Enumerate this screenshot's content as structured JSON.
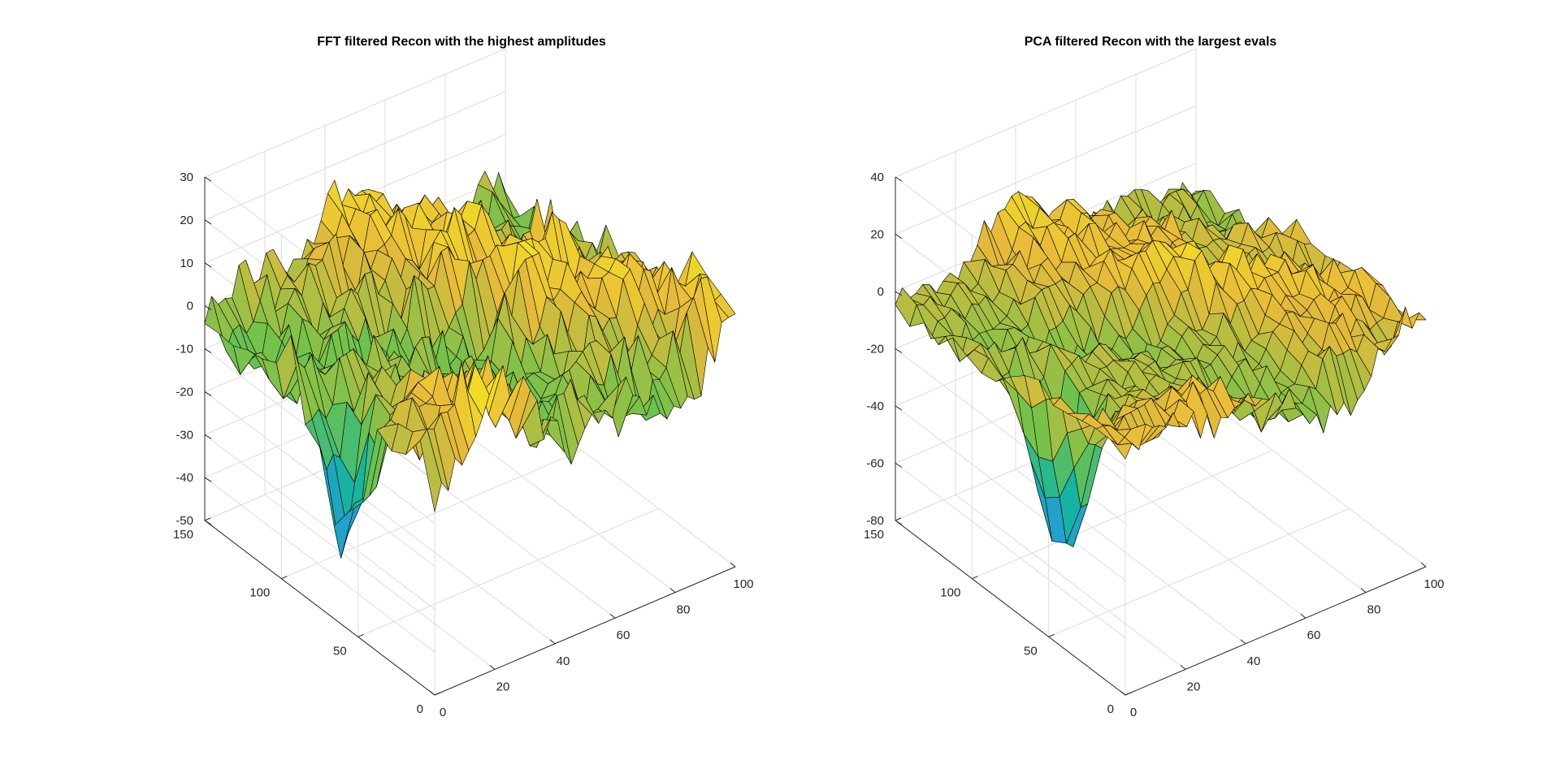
{
  "colors": {
    "background": "#ffffff",
    "edge": "#000000",
    "grid": "#dcdcdc",
    "colormap": [
      "#3e26a8",
      "#2c8ef3",
      "#15b5a0",
      "#72c24b",
      "#e8ba3a",
      "#f9fb15"
    ]
  },
  "chart_data": [
    {
      "type": "surface",
      "title": "FFT filtered Recon with the highest amplitudes",
      "xlabel": "",
      "ylabel": "",
      "zlabel": "",
      "xlim": [
        0,
        100
      ],
      "ylim": [
        0,
        150
      ],
      "zlim": [
        -50,
        30
      ],
      "xticks": [
        "0",
        "20",
        "40",
        "60",
        "80",
        "100"
      ],
      "yticks": [
        "0",
        "50",
        "100",
        "150"
      ],
      "zticks": [
        "-50",
        "-40",
        "-30",
        "-20",
        "-10",
        "0",
        "10",
        "20",
        "30"
      ],
      "grid": true,
      "colormap": "parula",
      "surface_summary": {
        "x_samples": 100,
        "y_samples": 150,
        "z_min": -48,
        "z_max": 21,
        "typical_level": 2,
        "deep_drop_near_x": 2,
        "deep_drop_near_y": 60
      }
    },
    {
      "type": "surface",
      "title": "PCA filtered Recon with the largest evals",
      "xlabel": "",
      "ylabel": "",
      "zlabel": "",
      "xlim": [
        0,
        100
      ],
      "ylim": [
        0,
        150
      ],
      "zlim": [
        -80,
        40
      ],
      "xticks": [
        "0",
        "20",
        "40",
        "60",
        "80",
        "100"
      ],
      "yticks": [
        "0",
        "50",
        "100",
        "150"
      ],
      "zticks": [
        "-80",
        "-60",
        "-40",
        "-20",
        "0",
        "20",
        "40"
      ],
      "grid": true,
      "colormap": "parula",
      "surface_summary": {
        "x_samples": 100,
        "y_samples": 150,
        "z_min": -78,
        "z_max": 26,
        "typical_level": 0,
        "deep_drop_near_x": 10,
        "deep_drop_near_y": 60
      }
    }
  ]
}
